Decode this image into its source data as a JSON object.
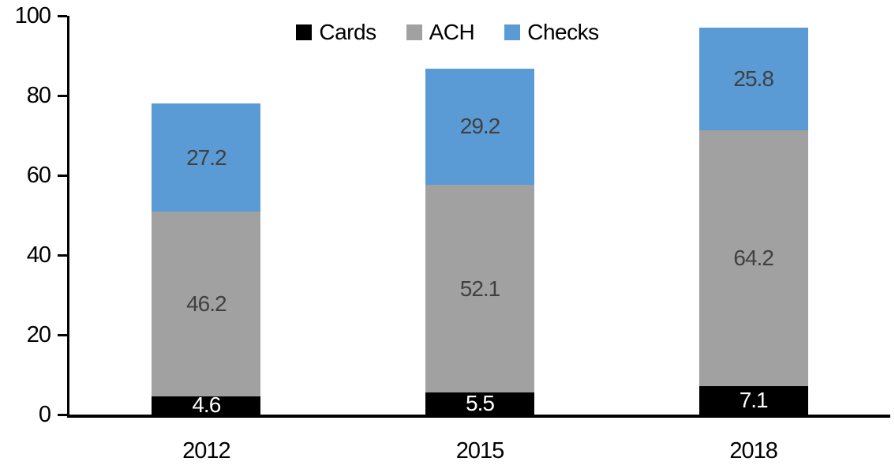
{
  "chart_data": {
    "type": "bar",
    "stacked": true,
    "title": "",
    "xlabel": "",
    "ylabel": "",
    "categories": [
      "2012",
      "2015",
      "2018"
    ],
    "series": [
      {
        "name": "Cards",
        "values": [
          4.6,
          5.5,
          7.1
        ],
        "color": "#000000",
        "label_color": "#ffffff"
      },
      {
        "name": "ACH",
        "values": [
          46.2,
          52.1,
          64.2
        ],
        "color": "#a1a1a1",
        "label_color": "#404040"
      },
      {
        "name": "Checks",
        "values": [
          27.2,
          29.2,
          25.8
        ],
        "color": "#5b9bd5",
        "label_color": "#404040"
      }
    ],
    "ylim": [
      0,
      100
    ],
    "yticks": [
      0,
      20,
      40,
      60,
      80,
      100
    ],
    "grid": false,
    "data_labels": true,
    "legend": {
      "position": "top-center",
      "labels": [
        "Cards",
        "ACH",
        "Checks"
      ]
    },
    "axis_color": "#000000"
  }
}
